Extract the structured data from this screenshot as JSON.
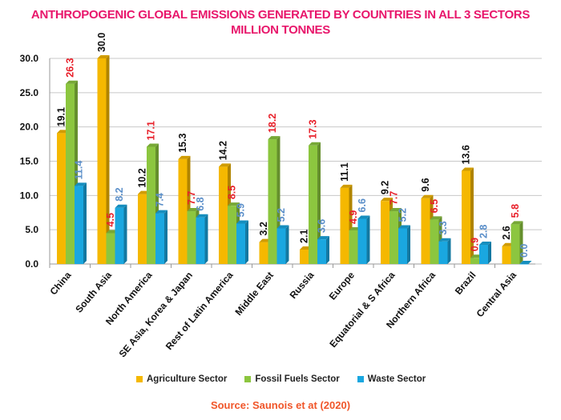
{
  "chart_data": {
    "type": "bar",
    "title": "ANTHROPOGENIC GLOBAL EMISSIONS GENERATED BY COUNTRIES IN ALL 3 SECTORS",
    "subtitle": "MILLION TONNES",
    "xlabel": "",
    "ylabel": "",
    "ylim": [
      0,
      30
    ],
    "yticks": [
      "0.0",
      "5.0",
      "10.0",
      "15.0",
      "20.0",
      "25.0",
      "30.0"
    ],
    "grid": true,
    "legend_position": "bottom",
    "categories": [
      "China",
      "South Asia",
      "North America",
      "SE Asia, Korea & Japan",
      "Rest of Latin America",
      "Middle East",
      "Russia",
      "Europe",
      "Equatorial & S Africa",
      "Northern Africa",
      "Brazil",
      "Central Asia"
    ],
    "series": [
      {
        "name": "Agriculture Sector",
        "color": "#f5b800",
        "label_color": "#111111",
        "values": [
          19.1,
          30.0,
          10.2,
          15.3,
          14.2,
          3.2,
          2.1,
          11.1,
          9.2,
          9.6,
          13.6,
          2.6
        ]
      },
      {
        "name": "Fossil Fuels Sector",
        "color": "#8cc63f",
        "label_color": "#e8202a",
        "values": [
          26.3,
          4.5,
          17.1,
          7.7,
          8.5,
          18.2,
          17.3,
          4.9,
          7.7,
          6.5,
          0.9,
          5.8
        ]
      },
      {
        "name": "Waste Sector",
        "color": "#1aa7e0",
        "label_color": "#5b8fc9",
        "values": [
          11.4,
          8.2,
          7.4,
          6.8,
          5.9,
          5.2,
          3.6,
          6.6,
          5.2,
          3.3,
          2.8,
          0.0
        ]
      }
    ],
    "source": "Source: Saunois  et at (2020)"
  }
}
